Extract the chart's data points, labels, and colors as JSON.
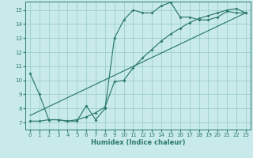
{
  "xlabel": "Humidex (Indice chaleur)",
  "xlim": [
    -0.5,
    23.5
  ],
  "ylim": [
    6.5,
    15.6
  ],
  "xticks": [
    0,
    1,
    2,
    3,
    4,
    5,
    6,
    7,
    8,
    9,
    10,
    11,
    12,
    13,
    14,
    15,
    16,
    17,
    18,
    19,
    20,
    21,
    22,
    23
  ],
  "yticks": [
    7,
    8,
    9,
    10,
    11,
    12,
    13,
    14,
    15
  ],
  "bg_color": "#c8eaea",
  "line_color": "#2d7a6e",
  "grid_color": "#9ecece",
  "line1_x": [
    0,
    1,
    2,
    3,
    4,
    5,
    6,
    7,
    8,
    9,
    10,
    11,
    12,
    13,
    14,
    15,
    16,
    17,
    18,
    19,
    20,
    21,
    22,
    23
  ],
  "line1_y": [
    10.5,
    9.0,
    7.2,
    7.2,
    7.1,
    7.1,
    8.2,
    7.2,
    8.0,
    13.0,
    14.3,
    15.0,
    14.8,
    14.8,
    15.3,
    15.55,
    14.5,
    14.5,
    14.3,
    14.3,
    14.5,
    14.9,
    14.8,
    14.8
  ],
  "line2_x": [
    0,
    1,
    2,
    3,
    4,
    5,
    6,
    7,
    8,
    9,
    10,
    11,
    12,
    13,
    14,
    15,
    16,
    17,
    18,
    19,
    20,
    21,
    22,
    23
  ],
  "line2_y": [
    7.1,
    7.1,
    7.2,
    7.2,
    7.1,
    7.2,
    7.4,
    7.7,
    8.1,
    9.9,
    10.0,
    10.9,
    11.6,
    12.2,
    12.8,
    13.3,
    13.7,
    14.1,
    14.4,
    14.6,
    14.8,
    15.0,
    15.1,
    14.8
  ],
  "line3_x": [
    0,
    23
  ],
  "line3_y": [
    7.5,
    14.8
  ]
}
